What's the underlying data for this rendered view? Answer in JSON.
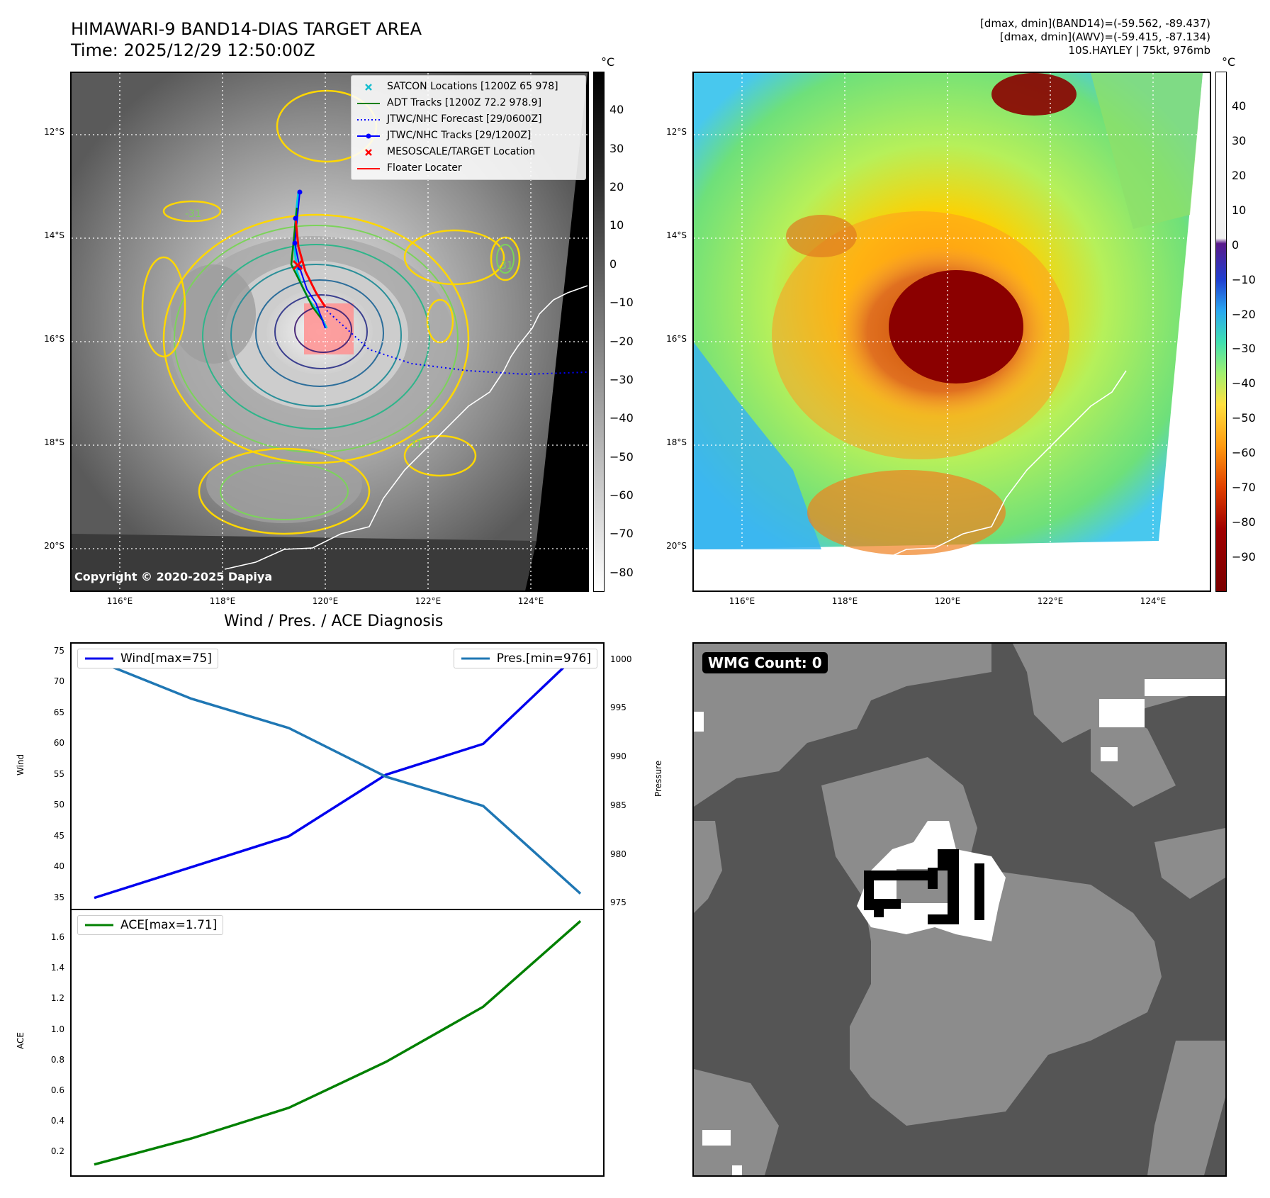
{
  "header": {
    "title_line1": "HIMAWARI-9 BAND14-DIAS TARGET AREA",
    "title_line2": "Time: 2025/12/29 12:50:00Z",
    "info_line1": "[dmax, dmin](BAND14)=(-59.562, -89.437)",
    "info_line2": "[dmax, dmin](AWV)=(-59.415, -87.134)",
    "info_line3": "10S.HAYLEY | 75kt, 976mb"
  },
  "map": {
    "lon_labels": [
      "116°E",
      "118°E",
      "120°E",
      "122°E",
      "124°E"
    ],
    "lat_labels": [
      "12°S",
      "14°S",
      "16°S",
      "18°S",
      "20°S"
    ],
    "copyright": "Copyright © 2020-2025 Dapiya",
    "contour_label": "-31",
    "legend": [
      {
        "label": "SATCON Locations [1200Z 65 978]",
        "symbol": "x",
        "color": "#17becf"
      },
      {
        "label": "ADT Tracks [1200Z 72.2 978.9]",
        "symbol": "line",
        "color": "#008000"
      },
      {
        "label": "JTWC/NHC Forecast [29/0600Z]",
        "symbol": "dotted",
        "color": "#0000ff"
      },
      {
        "label": "JTWC/NHC Tracks [29/1200Z]",
        "symbol": "line-dot",
        "color": "#0000ff"
      },
      {
        "label": "MESOSCALE/TARGET Location",
        "symbol": "x",
        "color": "#ff0000"
      },
      {
        "label": "Floater Locater",
        "symbol": "line",
        "color": "#ff0000"
      }
    ]
  },
  "colorbar_gray": {
    "unit": "°C",
    "ticks": [
      "40",
      "30",
      "20",
      "10",
      "0",
      "−10",
      "−20",
      "−30",
      "−40",
      "−50",
      "−60",
      "−70",
      "−80"
    ]
  },
  "colorbar_color": {
    "unit": "°C",
    "ticks": [
      "40",
      "30",
      "20",
      "10",
      "0",
      "−10",
      "−20",
      "−30",
      "−40",
      "−50",
      "−60",
      "−70",
      "−80",
      "−90"
    ]
  },
  "wmg": {
    "label": "WMG Count: 0"
  },
  "colors": {
    "wind": "#0000ee",
    "pressure": "#1f77b4",
    "ace": "#008000"
  },
  "chart_data": [
    {
      "type": "line",
      "title": "Wind / Pres. / ACE Diagnosis",
      "x": [
        0,
        1,
        2,
        3,
        4,
        5
      ],
      "series": [
        {
          "name": "Wind[max=75]",
          "axis": "left",
          "values": [
            35,
            40,
            45,
            55,
            60,
            75
          ]
        },
        {
          "name": "Pres.[min=976]",
          "axis": "right",
          "values": [
            1000,
            996,
            993,
            988,
            985,
            976
          ]
        }
      ],
      "ylabel": "Wind",
      "y2label": "Pressure",
      "ylim": [
        33,
        76.5
      ],
      "y2lim": [
        974.3,
        1001.8
      ],
      "yticks": [
        35,
        40,
        45,
        50,
        55,
        60,
        65,
        70,
        75
      ],
      "y2ticks": [
        975,
        980,
        985,
        990,
        995,
        1000
      ],
      "legend": "top-left / top-right"
    },
    {
      "type": "line",
      "x": [
        0,
        1,
        2,
        3,
        4,
        5
      ],
      "series": [
        {
          "name": "ACE[max=1.71]",
          "values": [
            0.12,
            0.29,
            0.49,
            0.79,
            1.15,
            1.71
          ]
        }
      ],
      "ylabel": "ACE",
      "ylim": [
        0.04,
        1.79
      ],
      "yticks": [
        0.2,
        0.4,
        0.6,
        0.8,
        1.0,
        1.2,
        1.4,
        1.6
      ],
      "legend": "top-left"
    }
  ]
}
